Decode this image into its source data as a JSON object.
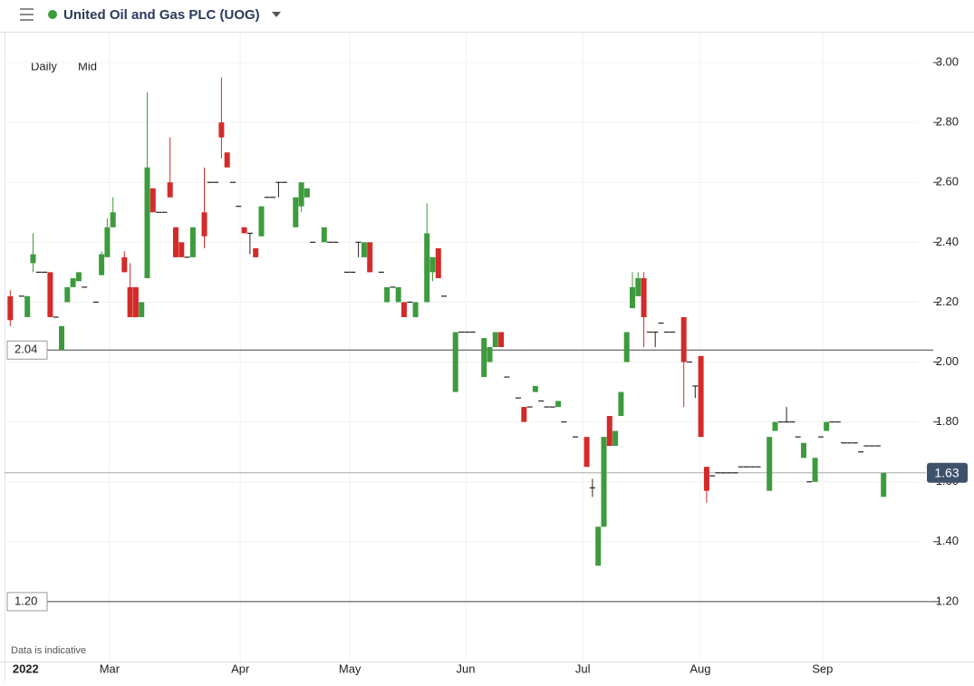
{
  "chart_data": {
    "type": "candlestick",
    "title": "United Oil and Gas PLC (UOG)",
    "interval": "Daily",
    "price_type": "Mid",
    "note": "Data is indicative",
    "up_color": "#3d9b3d",
    "down_color": "#d42a2a",
    "xlim": [
      0,
      160
    ],
    "xticks": [
      {
        "value": 3.7,
        "label": "2022"
      },
      {
        "value": 18.4,
        "label": "Mar"
      },
      {
        "value": 41.3,
        "label": "Apr"
      },
      {
        "value": 60.5,
        "label": "May"
      },
      {
        "value": 80.8,
        "label": "Jun"
      },
      {
        "value": 101.3,
        "label": "Jul"
      },
      {
        "value": 121.9,
        "label": "Aug"
      },
      {
        "value": 143.3,
        "label": "Sep"
      }
    ],
    "ylim": [
      1.0,
      3.1
    ],
    "yticks": [
      {
        "value": 3.0,
        "label": "3.00"
      },
      {
        "value": 2.8,
        "label": "2.80"
      },
      {
        "value": 2.6,
        "label": "2.60"
      },
      {
        "value": 2.4,
        "label": "2.40"
      },
      {
        "value": 2.2,
        "label": "2.20"
      },
      {
        "value": 2.0,
        "label": "2.00"
      },
      {
        "value": 1.8,
        "label": "1.80"
      },
      {
        "value": 1.6,
        "label": "1.60"
      },
      {
        "value": 1.4,
        "label": "1.40"
      },
      {
        "value": 1.2,
        "label": "1.20"
      }
    ],
    "grid": true,
    "lines": [
      {
        "value": 2.04,
        "label": "2.04"
      },
      {
        "value": 1.2,
        "label": "1.20"
      }
    ],
    "last_price": {
      "value": 1.63,
      "label": "1.63"
    },
    "candles": [
      {
        "x": 1,
        "o": 2.22,
        "h": 2.24,
        "l": 2.12,
        "c": 2.14
      },
      {
        "x": 3,
        "o": 2.22,
        "h": 2.22,
        "l": 2.22,
        "c": 2.22
      },
      {
        "x": 4,
        "o": 2.15,
        "h": 2.22,
        "l": 2.15,
        "c": 2.22
      },
      {
        "x": 5,
        "o": 2.33,
        "h": 2.43,
        "l": 2.3,
        "c": 2.36
      },
      {
        "x": 6,
        "o": 2.3,
        "h": 2.3,
        "l": 2.3,
        "c": 2.3
      },
      {
        "x": 7,
        "o": 2.3,
        "h": 2.3,
        "l": 2.3,
        "c": 2.3
      },
      {
        "x": 8,
        "o": 2.3,
        "h": 2.3,
        "l": 2.15,
        "c": 2.15
      },
      {
        "x": 9,
        "o": 2.15,
        "h": 2.15,
        "l": 2.15,
        "c": 2.15
      },
      {
        "x": 10,
        "o": 2.04,
        "h": 2.12,
        "l": 2.04,
        "c": 2.12
      },
      {
        "x": 11,
        "o": 2.2,
        "h": 2.25,
        "l": 2.2,
        "c": 2.25
      },
      {
        "x": 12,
        "o": 2.25,
        "h": 2.28,
        "l": 2.25,
        "c": 2.28
      },
      {
        "x": 13,
        "o": 2.27,
        "h": 2.3,
        "l": 2.27,
        "c": 2.3
      },
      {
        "x": 14,
        "o": 2.25,
        "h": 2.25,
        "l": 2.25,
        "c": 2.25
      },
      {
        "x": 16,
        "o": 2.2,
        "h": 2.2,
        "l": 2.2,
        "c": 2.2
      },
      {
        "x": 17,
        "o": 2.29,
        "h": 2.37,
        "l": 2.29,
        "c": 2.36
      },
      {
        "x": 18,
        "o": 2.35,
        "h": 2.48,
        "l": 2.35,
        "c": 2.45
      },
      {
        "x": 19,
        "o": 2.45,
        "h": 2.55,
        "l": 2.45,
        "c": 2.5
      },
      {
        "x": 21,
        "o": 2.35,
        "h": 2.37,
        "l": 2.3,
        "c": 2.3
      },
      {
        "x": 22,
        "o": 2.25,
        "h": 2.33,
        "l": 2.15,
        "c": 2.15
      },
      {
        "x": 23,
        "o": 2.25,
        "h": 2.25,
        "l": 2.15,
        "c": 2.15
      },
      {
        "x": 24,
        "o": 2.15,
        "h": 2.2,
        "l": 2.15,
        "c": 2.2
      },
      {
        "x": 25,
        "o": 2.28,
        "h": 2.9,
        "l": 2.28,
        "c": 2.65
      },
      {
        "x": 26,
        "o": 2.58,
        "h": 2.58,
        "l": 2.5,
        "c": 2.5
      },
      {
        "x": 27,
        "o": 2.5,
        "h": 2.5,
        "l": 2.5,
        "c": 2.5
      },
      {
        "x": 28,
        "o": 2.5,
        "h": 2.5,
        "l": 2.5,
        "c": 2.5
      },
      {
        "x": 29,
        "o": 2.6,
        "h": 2.75,
        "l": 2.55,
        "c": 2.55
      },
      {
        "x": 30,
        "o": 2.45,
        "h": 2.45,
        "l": 2.35,
        "c": 2.35
      },
      {
        "x": 31,
        "o": 2.4,
        "h": 2.4,
        "l": 2.35,
        "c": 2.35
      },
      {
        "x": 32,
        "o": 2.35,
        "h": 2.35,
        "l": 2.35,
        "c": 2.35
      },
      {
        "x": 33,
        "o": 2.35,
        "h": 2.45,
        "l": 2.35,
        "c": 2.45
      },
      {
        "x": 35,
        "o": 2.5,
        "h": 2.65,
        "l": 2.38,
        "c": 2.42
      },
      {
        "x": 36,
        "o": 2.6,
        "h": 2.6,
        "l": 2.6,
        "c": 2.6
      },
      {
        "x": 37,
        "o": 2.6,
        "h": 2.6,
        "l": 2.6,
        "c": 2.6
      },
      {
        "x": 38,
        "o": 2.8,
        "h": 2.95,
        "l": 2.68,
        "c": 2.75
      },
      {
        "x": 39,
        "o": 2.7,
        "h": 2.7,
        "l": 2.65,
        "c": 2.65
      },
      {
        "x": 40,
        "o": 2.6,
        "h": 2.6,
        "l": 2.6,
        "c": 2.6
      },
      {
        "x": 41,
        "o": 2.52,
        "h": 2.52,
        "l": 2.52,
        "c": 2.52
      },
      {
        "x": 42,
        "o": 2.45,
        "h": 2.45,
        "l": 2.43,
        "c": 2.43
      },
      {
        "x": 43,
        "o": 2.43,
        "h": 2.43,
        "l": 2.36,
        "c": 2.43
      },
      {
        "x": 44,
        "o": 2.38,
        "h": 2.38,
        "l": 2.35,
        "c": 2.35
      },
      {
        "x": 45,
        "o": 2.42,
        "h": 2.52,
        "l": 2.42,
        "c": 2.52
      },
      {
        "x": 46,
        "o": 2.55,
        "h": 2.55,
        "l": 2.55,
        "c": 2.55
      },
      {
        "x": 47,
        "o": 2.55,
        "h": 2.55,
        "l": 2.55,
        "c": 2.55
      },
      {
        "x": 48,
        "o": 2.6,
        "h": 2.6,
        "l": 2.55,
        "c": 2.6
      },
      {
        "x": 49,
        "o": 2.6,
        "h": 2.6,
        "l": 2.6,
        "c": 2.6
      },
      {
        "x": 51,
        "o": 2.45,
        "h": 2.55,
        "l": 2.45,
        "c": 2.55
      },
      {
        "x": 52,
        "o": 2.52,
        "h": 2.6,
        "l": 2.5,
        "c": 2.6
      },
      {
        "x": 53,
        "o": 2.55,
        "h": 2.58,
        "l": 2.55,
        "c": 2.58
      },
      {
        "x": 54,
        "o": 2.4,
        "h": 2.4,
        "l": 2.4,
        "c": 2.4
      },
      {
        "x": 56,
        "o": 2.4,
        "h": 2.45,
        "l": 2.4,
        "c": 2.45
      },
      {
        "x": 57,
        "o": 2.4,
        "h": 2.4,
        "l": 2.4,
        "c": 2.4
      },
      {
        "x": 58,
        "o": 2.4,
        "h": 2.4,
        "l": 2.4,
        "c": 2.4
      },
      {
        "x": 60,
        "o": 2.3,
        "h": 2.3,
        "l": 2.3,
        "c": 2.3
      },
      {
        "x": 61,
        "o": 2.3,
        "h": 2.3,
        "l": 2.3,
        "c": 2.3
      },
      {
        "x": 62,
        "o": 2.4,
        "h": 2.4,
        "l": 2.35,
        "c": 2.4
      },
      {
        "x": 63,
        "o": 2.35,
        "h": 2.4,
        "l": 2.35,
        "c": 2.4
      },
      {
        "x": 64,
        "o": 2.4,
        "h": 2.4,
        "l": 2.3,
        "c": 2.3
      },
      {
        "x": 66,
        "o": 2.3,
        "h": 2.3,
        "l": 2.3,
        "c": 2.3
      },
      {
        "x": 67,
        "o": 2.2,
        "h": 2.25,
        "l": 2.2,
        "c": 2.25
      },
      {
        "x": 68,
        "o": 2.25,
        "h": 2.25,
        "l": 2.25,
        "c": 2.25
      },
      {
        "x": 69,
        "o": 2.2,
        "h": 2.25,
        "l": 2.2,
        "c": 2.25
      },
      {
        "x": 70,
        "o": 2.2,
        "h": 2.2,
        "l": 2.15,
        "c": 2.15
      },
      {
        "x": 71,
        "o": 2.2,
        "h": 2.2,
        "l": 2.2,
        "c": 2.2
      },
      {
        "x": 72,
        "o": 2.15,
        "h": 2.2,
        "l": 2.15,
        "c": 2.2
      },
      {
        "x": 74,
        "o": 2.2,
        "h": 2.53,
        "l": 2.2,
        "c": 2.43
      },
      {
        "x": 75,
        "o": 2.3,
        "h": 2.35,
        "l": 2.27,
        "c": 2.35
      },
      {
        "x": 76,
        "o": 2.38,
        "h": 2.38,
        "l": 2.28,
        "c": 2.28
      },
      {
        "x": 77,
        "o": 2.22,
        "h": 2.22,
        "l": 2.22,
        "c": 2.22
      },
      {
        "x": 79,
        "o": 1.9,
        "h": 2.1,
        "l": 1.9,
        "c": 2.1
      },
      {
        "x": 80,
        "o": 2.1,
        "h": 2.1,
        "l": 2.1,
        "c": 2.1
      },
      {
        "x": 81,
        "o": 2.1,
        "h": 2.1,
        "l": 2.1,
        "c": 2.1
      },
      {
        "x": 82,
        "o": 2.1,
        "h": 2.1,
        "l": 2.1,
        "c": 2.1
      },
      {
        "x": 84,
        "o": 1.95,
        "h": 2.08,
        "l": 1.95,
        "c": 2.08
      },
      {
        "x": 85,
        "o": 2.0,
        "h": 2.05,
        "l": 2.0,
        "c": 2.05
      },
      {
        "x": 86,
        "o": 2.05,
        "h": 2.1,
        "l": 2.05,
        "c": 2.1
      },
      {
        "x": 87,
        "o": 2.1,
        "h": 2.1,
        "l": 2.05,
        "c": 2.05
      },
      {
        "x": 88,
        "o": 1.95,
        "h": 1.95,
        "l": 1.95,
        "c": 1.95
      },
      {
        "x": 90,
        "o": 1.88,
        "h": 1.88,
        "l": 1.88,
        "c": 1.88
      },
      {
        "x": 91,
        "o": 1.85,
        "h": 1.85,
        "l": 1.8,
        "c": 1.8
      },
      {
        "x": 92,
        "o": 1.85,
        "h": 1.85,
        "l": 1.85,
        "c": 1.85
      },
      {
        "x": 93,
        "o": 1.9,
        "h": 1.92,
        "l": 1.9,
        "c": 1.92
      },
      {
        "x": 94,
        "o": 1.87,
        "h": 1.87,
        "l": 1.87,
        "c": 1.87
      },
      {
        "x": 95,
        "o": 1.85,
        "h": 1.85,
        "l": 1.85,
        "c": 1.85
      },
      {
        "x": 96,
        "o": 1.85,
        "h": 1.85,
        "l": 1.85,
        "c": 1.85
      },
      {
        "x": 97,
        "o": 1.85,
        "h": 1.87,
        "l": 1.85,
        "c": 1.87
      },
      {
        "x": 98,
        "o": 1.8,
        "h": 1.8,
        "l": 1.8,
        "c": 1.8
      },
      {
        "x": 100,
        "o": 1.75,
        "h": 1.75,
        "l": 1.75,
        "c": 1.75
      },
      {
        "x": 102,
        "o": 1.75,
        "h": 1.75,
        "l": 1.65,
        "c": 1.65
      },
      {
        "x": 103,
        "o": 1.58,
        "h": 1.61,
        "l": 1.55,
        "c": 1.58
      },
      {
        "x": 104,
        "o": 1.32,
        "h": 1.45,
        "l": 1.32,
        "c": 1.45
      },
      {
        "x": 105,
        "o": 1.45,
        "h": 1.75,
        "l": 1.45,
        "c": 1.75
      },
      {
        "x": 106,
        "o": 1.82,
        "h": 1.82,
        "l": 1.72,
        "c": 1.72
      },
      {
        "x": 107,
        "o": 1.72,
        "h": 1.77,
        "l": 1.72,
        "c": 1.77
      },
      {
        "x": 108,
        "o": 1.82,
        "h": 1.9,
        "l": 1.82,
        "c": 1.9
      },
      {
        "x": 109,
        "o": 2.0,
        "h": 2.1,
        "l": 2.0,
        "c": 2.1
      },
      {
        "x": 110,
        "o": 2.18,
        "h": 2.3,
        "l": 2.18,
        "c": 2.25
      },
      {
        "x": 111,
        "o": 2.22,
        "h": 2.3,
        "l": 2.22,
        "c": 2.28
      },
      {
        "x": 112,
        "o": 2.28,
        "h": 2.3,
        "l": 2.05,
        "c": 2.15
      },
      {
        "x": 113,
        "o": 2.1,
        "h": 2.1,
        "l": 2.1,
        "c": 2.1
      },
      {
        "x": 114,
        "o": 2.1,
        "h": 2.1,
        "l": 2.05,
        "c": 2.1
      },
      {
        "x": 115,
        "o": 2.13,
        "h": 2.13,
        "l": 2.13,
        "c": 2.13
      },
      {
        "x": 116,
        "o": 2.1,
        "h": 2.1,
        "l": 2.1,
        "c": 2.1
      },
      {
        "x": 117,
        "o": 2.1,
        "h": 2.1,
        "l": 2.1,
        "c": 2.1
      },
      {
        "x": 119,
        "o": 2.15,
        "h": 2.15,
        "l": 1.85,
        "c": 2.0
      },
      {
        "x": 120,
        "o": 2.0,
        "h": 2.0,
        "l": 2.0,
        "c": 2.0
      },
      {
        "x": 121,
        "o": 1.92,
        "h": 1.92,
        "l": 1.88,
        "c": 1.92
      },
      {
        "x": 122,
        "o": 2.02,
        "h": 2.02,
        "l": 1.75,
        "c": 1.75
      },
      {
        "x": 123,
        "o": 1.65,
        "h": 1.65,
        "l": 1.53,
        "c": 1.57
      },
      {
        "x": 124,
        "o": 1.62,
        "h": 1.62,
        "l": 1.62,
        "c": 1.62
      },
      {
        "x": 125,
        "o": 1.63,
        "h": 1.63,
        "l": 1.63,
        "c": 1.63
      },
      {
        "x": 126,
        "o": 1.63,
        "h": 1.63,
        "l": 1.63,
        "c": 1.63
      },
      {
        "x": 127,
        "o": 1.63,
        "h": 1.63,
        "l": 1.63,
        "c": 1.63
      },
      {
        "x": 128,
        "o": 1.63,
        "h": 1.63,
        "l": 1.63,
        "c": 1.63
      },
      {
        "x": 129,
        "o": 1.65,
        "h": 1.65,
        "l": 1.65,
        "c": 1.65
      },
      {
        "x": 130,
        "o": 1.65,
        "h": 1.65,
        "l": 1.65,
        "c": 1.65
      },
      {
        "x": 131,
        "o": 1.65,
        "h": 1.65,
        "l": 1.65,
        "c": 1.65
      },
      {
        "x": 132,
        "o": 1.65,
        "h": 1.65,
        "l": 1.65,
        "c": 1.65
      },
      {
        "x": 134,
        "o": 1.57,
        "h": 1.75,
        "l": 1.57,
        "c": 1.75
      },
      {
        "x": 135,
        "o": 1.77,
        "h": 1.8,
        "l": 1.77,
        "c": 1.8
      },
      {
        "x": 136,
        "o": 1.8,
        "h": 1.8,
        "l": 1.8,
        "c": 1.8
      },
      {
        "x": 137,
        "o": 1.8,
        "h": 1.85,
        "l": 1.8,
        "c": 1.8
      },
      {
        "x": 138,
        "o": 1.8,
        "h": 1.8,
        "l": 1.8,
        "c": 1.8
      },
      {
        "x": 139,
        "o": 1.75,
        "h": 1.75,
        "l": 1.75,
        "c": 1.75
      },
      {
        "x": 140,
        "o": 1.68,
        "h": 1.73,
        "l": 1.68,
        "c": 1.73
      },
      {
        "x": 141,
        "o": 1.6,
        "h": 1.6,
        "l": 1.6,
        "c": 1.6
      },
      {
        "x": 142,
        "o": 1.6,
        "h": 1.68,
        "l": 1.6,
        "c": 1.68
      },
      {
        "x": 143,
        "o": 1.75,
        "h": 1.75,
        "l": 1.75,
        "c": 1.75
      },
      {
        "x": 144,
        "o": 1.77,
        "h": 1.8,
        "l": 1.77,
        "c": 1.8
      },
      {
        "x": 145,
        "o": 1.8,
        "h": 1.8,
        "l": 1.8,
        "c": 1.8
      },
      {
        "x": 146,
        "o": 1.8,
        "h": 1.8,
        "l": 1.8,
        "c": 1.8
      },
      {
        "x": 147,
        "o": 1.73,
        "h": 1.73,
        "l": 1.73,
        "c": 1.73
      },
      {
        "x": 148,
        "o": 1.73,
        "h": 1.73,
        "l": 1.73,
        "c": 1.73
      },
      {
        "x": 149,
        "o": 1.73,
        "h": 1.73,
        "l": 1.73,
        "c": 1.73
      },
      {
        "x": 150,
        "o": 1.7,
        "h": 1.7,
        "l": 1.7,
        "c": 1.7
      },
      {
        "x": 151,
        "o": 1.72,
        "h": 1.72,
        "l": 1.72,
        "c": 1.72
      },
      {
        "x": 152,
        "o": 1.72,
        "h": 1.72,
        "l": 1.72,
        "c": 1.72
      },
      {
        "x": 153,
        "o": 1.72,
        "h": 1.72,
        "l": 1.72,
        "c": 1.72
      },
      {
        "x": 154,
        "o": 1.55,
        "h": 1.63,
        "l": 1.55,
        "c": 1.63
      }
    ]
  }
}
